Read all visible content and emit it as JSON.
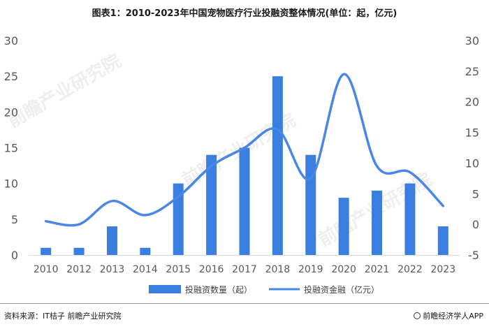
{
  "title": "图表1：2010-2023年中国宠物医疗行业投融资整体情况(单位：起，亿元)",
  "source": "资料来源：IT桔子 前瞻产业研究院",
  "brand": "前瞻经济学人APP",
  "watermark": "前瞻产业研究院",
  "colors": {
    "bar": "#3a7fe0",
    "line": "#4a86e8",
    "axis_text": "#595959",
    "grid": "#d9d9d9"
  },
  "chart_data": {
    "type": "bar",
    "categories": [
      "2010",
      "2012",
      "2013",
      "2014",
      "2015",
      "2016",
      "2017",
      "2018",
      "2019",
      "2020",
      "2021",
      "2022",
      "2023"
    ],
    "series": [
      {
        "name": "投融资数量（起）",
        "type": "bar",
        "axis": "left",
        "values": [
          1,
          1,
          4,
          1,
          10,
          14,
          15,
          25,
          14,
          8,
          9,
          10,
          4
        ]
      },
      {
        "name": "投融资金融（亿元）",
        "type": "line",
        "axis": "right",
        "values": [
          0.5,
          0,
          3.8,
          1.5,
          4.5,
          9.5,
          12.5,
          15.5,
          7.5,
          24.5,
          9.5,
          8.5,
          3
        ]
      }
    ],
    "y_left": {
      "ylim": [
        0,
        30
      ],
      "ticks": [
        "0",
        "5",
        "10",
        "15",
        "20",
        "25",
        "30"
      ]
    },
    "y_right": {
      "ylim": [
        -5,
        30
      ],
      "ticks": [
        "-5",
        "0",
        "5",
        "10",
        "15",
        "20",
        "25",
        "30"
      ]
    },
    "grid": false,
    "legend_position": "bottom"
  }
}
